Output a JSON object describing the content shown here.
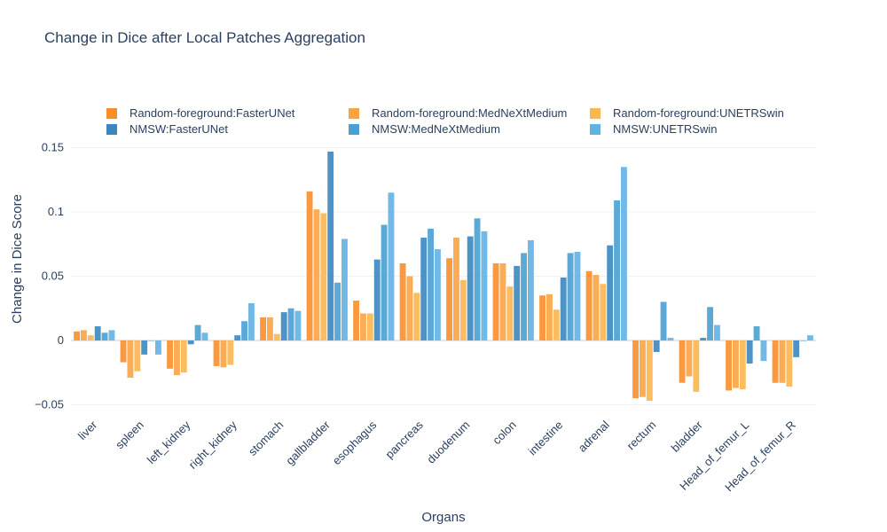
{
  "chart_data": {
    "type": "bar",
    "title": "Change in Dice after Local Patches Aggregation",
    "xlabel": "Organs",
    "ylabel": "Change in Dice Score",
    "ylim": [
      -0.058,
      0.158
    ],
    "yticks": [
      -0.05,
      0,
      0.05,
      0.1,
      0.15
    ],
    "ytick_labels": [
      "−0.05",
      "0",
      "0.05",
      "0.1",
      "0.15"
    ],
    "grid": true,
    "legend_position": "top",
    "categories": [
      "liver",
      "spleen",
      "left_kidney",
      "right_kidney",
      "stomach",
      "gallbladder",
      "esophagus",
      "pancreas",
      "duodenum",
      "colon",
      "intestine",
      "adrenal",
      "rectum",
      "bladder",
      "Head_of_femur_L",
      "Head_of_femur_R"
    ],
    "series": [
      {
        "name": "Random-foreground:FasterUNet",
        "color": "#f98e2b",
        "values": [
          0.007,
          -0.017,
          -0.022,
          -0.02,
          0.018,
          0.116,
          0.031,
          0.06,
          0.064,
          0.06,
          0.035,
          0.054,
          -0.045,
          -0.033,
          -0.039,
          -0.033
        ]
      },
      {
        "name": "Random-foreground:MedNeXtMedium",
        "color": "#fba342",
        "values": [
          0.008,
          -0.029,
          -0.027,
          -0.021,
          0.018,
          0.102,
          0.021,
          0.05,
          0.08,
          0.06,
          0.036,
          0.051,
          -0.044,
          -0.028,
          -0.037,
          -0.033
        ]
      },
      {
        "name": "Random-foreground:UNETRSwin",
        "color": "#fcb64f",
        "values": [
          0.004,
          -0.024,
          -0.025,
          -0.019,
          0.005,
          0.099,
          0.021,
          0.037,
          0.047,
          0.042,
          0.024,
          0.044,
          -0.047,
          -0.04,
          -0.038,
          -0.036
        ]
      },
      {
        "name": "NMSW:FasterUNet",
        "color": "#3b87c0",
        "values": [
          0.011,
          -0.011,
          -0.003,
          0.004,
          0.022,
          0.147,
          0.063,
          0.08,
          0.081,
          0.058,
          0.049,
          0.074,
          -0.009,
          0.002,
          -0.018,
          -0.013
        ]
      },
      {
        "name": "NMSW:MedNeXtMedium",
        "color": "#4a9fd3",
        "values": [
          0.006,
          0.0,
          0.012,
          0.015,
          0.025,
          0.045,
          0.09,
          0.087,
          0.095,
          0.068,
          0.068,
          0.109,
          0.03,
          0.026,
          0.011,
          0.0
        ]
      },
      {
        "name": "NMSW:UNETRSwin",
        "color": "#62b1e3",
        "values": [
          0.008,
          -0.011,
          0.006,
          0.029,
          0.023,
          0.079,
          0.115,
          0.071,
          0.085,
          0.078,
          0.069,
          0.135,
          0.002,
          0.012,
          -0.016,
          0.004
        ]
      }
    ]
  }
}
